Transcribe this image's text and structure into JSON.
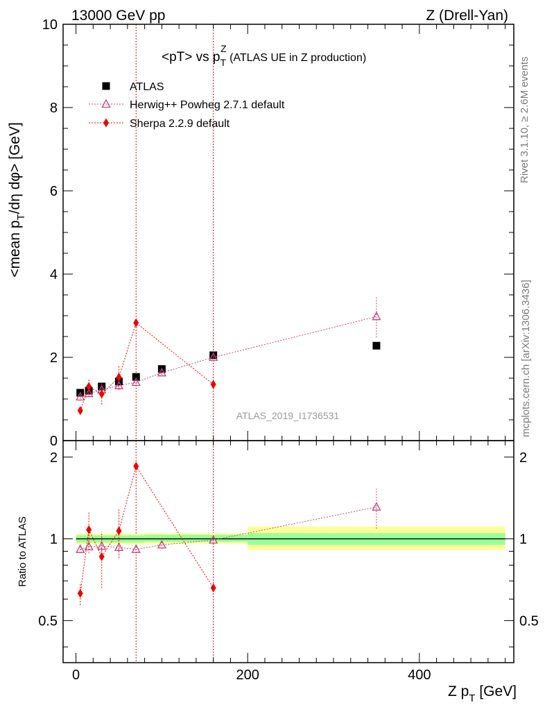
{
  "header": {
    "left": "13000 GeV pp",
    "right": "Z (Drell-Yan)"
  },
  "side_labels": {
    "rivet": "Rivet 3.1.10, ≥ 2.6M events",
    "mcplots": "mcplots.cern.ch [arXiv:1306.3436]"
  },
  "chart_data": [
    {
      "type": "scatter",
      "title_main": "<pT> vs p",
      "title_sup": "Z",
      "title_sub": "T",
      "title_rest": " (ATLAS UE in Z production)",
      "ylabel_parts": [
        "<mean p",
        "T",
        "/dη dφ> [GeV]"
      ],
      "watermark": "ATLAS_2019_I1736531",
      "xlim": [
        -15,
        510
      ],
      "ylim": [
        0,
        10
      ],
      "y_ticks": [
        0,
        2,
        4,
        6,
        8,
        10
      ],
      "x_ticks": [
        0,
        200,
        400
      ],
      "log_y": false,
      "vlines": [
        70,
        160
      ],
      "legend_position": "top-left",
      "series": [
        {
          "name": "ATLAS",
          "marker": "square",
          "color": "#000000",
          "x": [
            5,
            15,
            30,
            50,
            70,
            100,
            160,
            350
          ],
          "y": [
            1.15,
            1.2,
            1.3,
            1.42,
            1.53,
            1.72,
            2.05,
            2.28
          ]
        },
        {
          "name": "Herwig++ Powheg 2.7.1 default",
          "marker": "open-triangle",
          "color": "#c8407e",
          "x": [
            5,
            15,
            30,
            50,
            70,
            100,
            160,
            350
          ],
          "y": [
            1.05,
            1.13,
            1.22,
            1.32,
            1.4,
            1.63,
            2.0,
            2.98
          ],
          "yerr": [
            0.05,
            0.07,
            0.06,
            0.08,
            0.05,
            0.05,
            0.05,
            0.5
          ]
        },
        {
          "name": "Sherpa 2.2.9 default",
          "marker": "diamond",
          "color": "#ee0000",
          "x": [
            5,
            15,
            30,
            50,
            70,
            160
          ],
          "y": [
            0.72,
            1.3,
            1.12,
            1.52,
            2.83,
            1.35
          ],
          "yerr": [
            0.08,
            0.2,
            0.25,
            0.3,
            0.0,
            0.0
          ]
        }
      ]
    },
    {
      "type": "scatter",
      "ylabel": "Ratio to ATLAS",
      "xlabel_main": "Z p",
      "xlabel_sub": "T",
      "xlabel_rest": " [GeV]",
      "xlim": [
        -15,
        510
      ],
      "ylim": [
        0.35,
        2.3
      ],
      "y_ticks": [
        0.5,
        1,
        2
      ],
      "y_tick_labels": [
        "0.5",
        "1",
        "2"
      ],
      "x_ticks": [
        0,
        200,
        400
      ],
      "log_y": true,
      "reference": 1,
      "bands": [
        {
          "x": [
            0,
            10
          ],
          "inner": [
            0.97,
            1.03
          ],
          "outer": [
            0.955,
            1.045
          ]
        },
        {
          "x": [
            10,
            20
          ],
          "inner": [
            0.97,
            1.03
          ],
          "outer": [
            0.955,
            1.045
          ]
        },
        {
          "x": [
            20,
            40
          ],
          "inner": [
            0.97,
            1.03
          ],
          "outer": [
            0.955,
            1.045
          ]
        },
        {
          "x": [
            40,
            60
          ],
          "inner": [
            0.97,
            1.03
          ],
          "outer": [
            0.955,
            1.045
          ]
        },
        {
          "x": [
            60,
            80
          ],
          "inner": [
            0.97,
            1.03
          ],
          "outer": [
            0.955,
            1.045
          ]
        },
        {
          "x": [
            80,
            120
          ],
          "inner": [
            0.975,
            1.035
          ],
          "outer": [
            0.96,
            1.05
          ]
        },
        {
          "x": [
            120,
            200
          ],
          "inner": [
            0.975,
            1.035
          ],
          "outer": [
            0.96,
            1.05
          ]
        },
        {
          "x": [
            200,
            500
          ],
          "inner": [
            0.95,
            1.05
          ],
          "outer": [
            0.91,
            1.11
          ]
        }
      ],
      "series": [
        {
          "name": "Herwig++ Powheg 2.7.1 default",
          "marker": "open-triangle",
          "color": "#c8407e",
          "x": [
            5,
            15,
            30,
            50,
            70,
            100,
            160,
            350
          ],
          "y": [
            0.915,
            0.935,
            0.94,
            0.93,
            0.915,
            0.95,
            0.99,
            1.31
          ],
          "yerr": [
            0.03,
            0.05,
            0.04,
            0.06,
            0.03,
            0.03,
            0.03,
            0.22
          ]
        },
        {
          "name": "Sherpa 2.2.9 default",
          "marker": "diamond",
          "color": "#ee0000",
          "x": [
            5,
            15,
            30,
            50,
            70,
            160
          ],
          "y": [
            0.63,
            1.08,
            0.86,
            1.07,
            1.85,
            0.66
          ],
          "yerr": [
            0.06,
            0.17,
            0.2,
            0.22,
            0.0,
            0.0
          ]
        }
      ]
    }
  ]
}
